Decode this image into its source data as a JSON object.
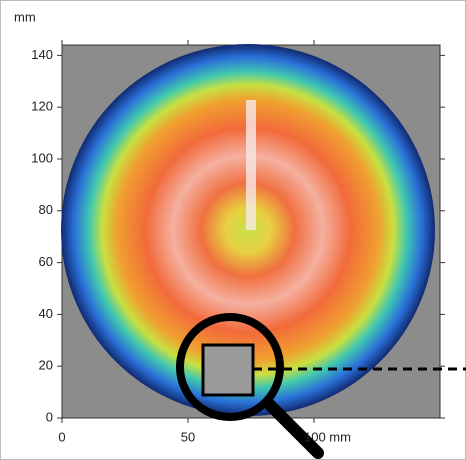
{
  "chart_data": {
    "type": "heatmap",
    "ylabel": "mm",
    "xlim": [
      0,
      150
    ],
    "ylim": [
      0,
      144
    ],
    "xticks": [
      0,
      50,
      {
        "value": 100,
        "label": "100 mm"
      }
    ],
    "yticks": [
      0,
      20,
      40,
      60,
      80,
      100,
      120,
      140
    ]
  }
}
